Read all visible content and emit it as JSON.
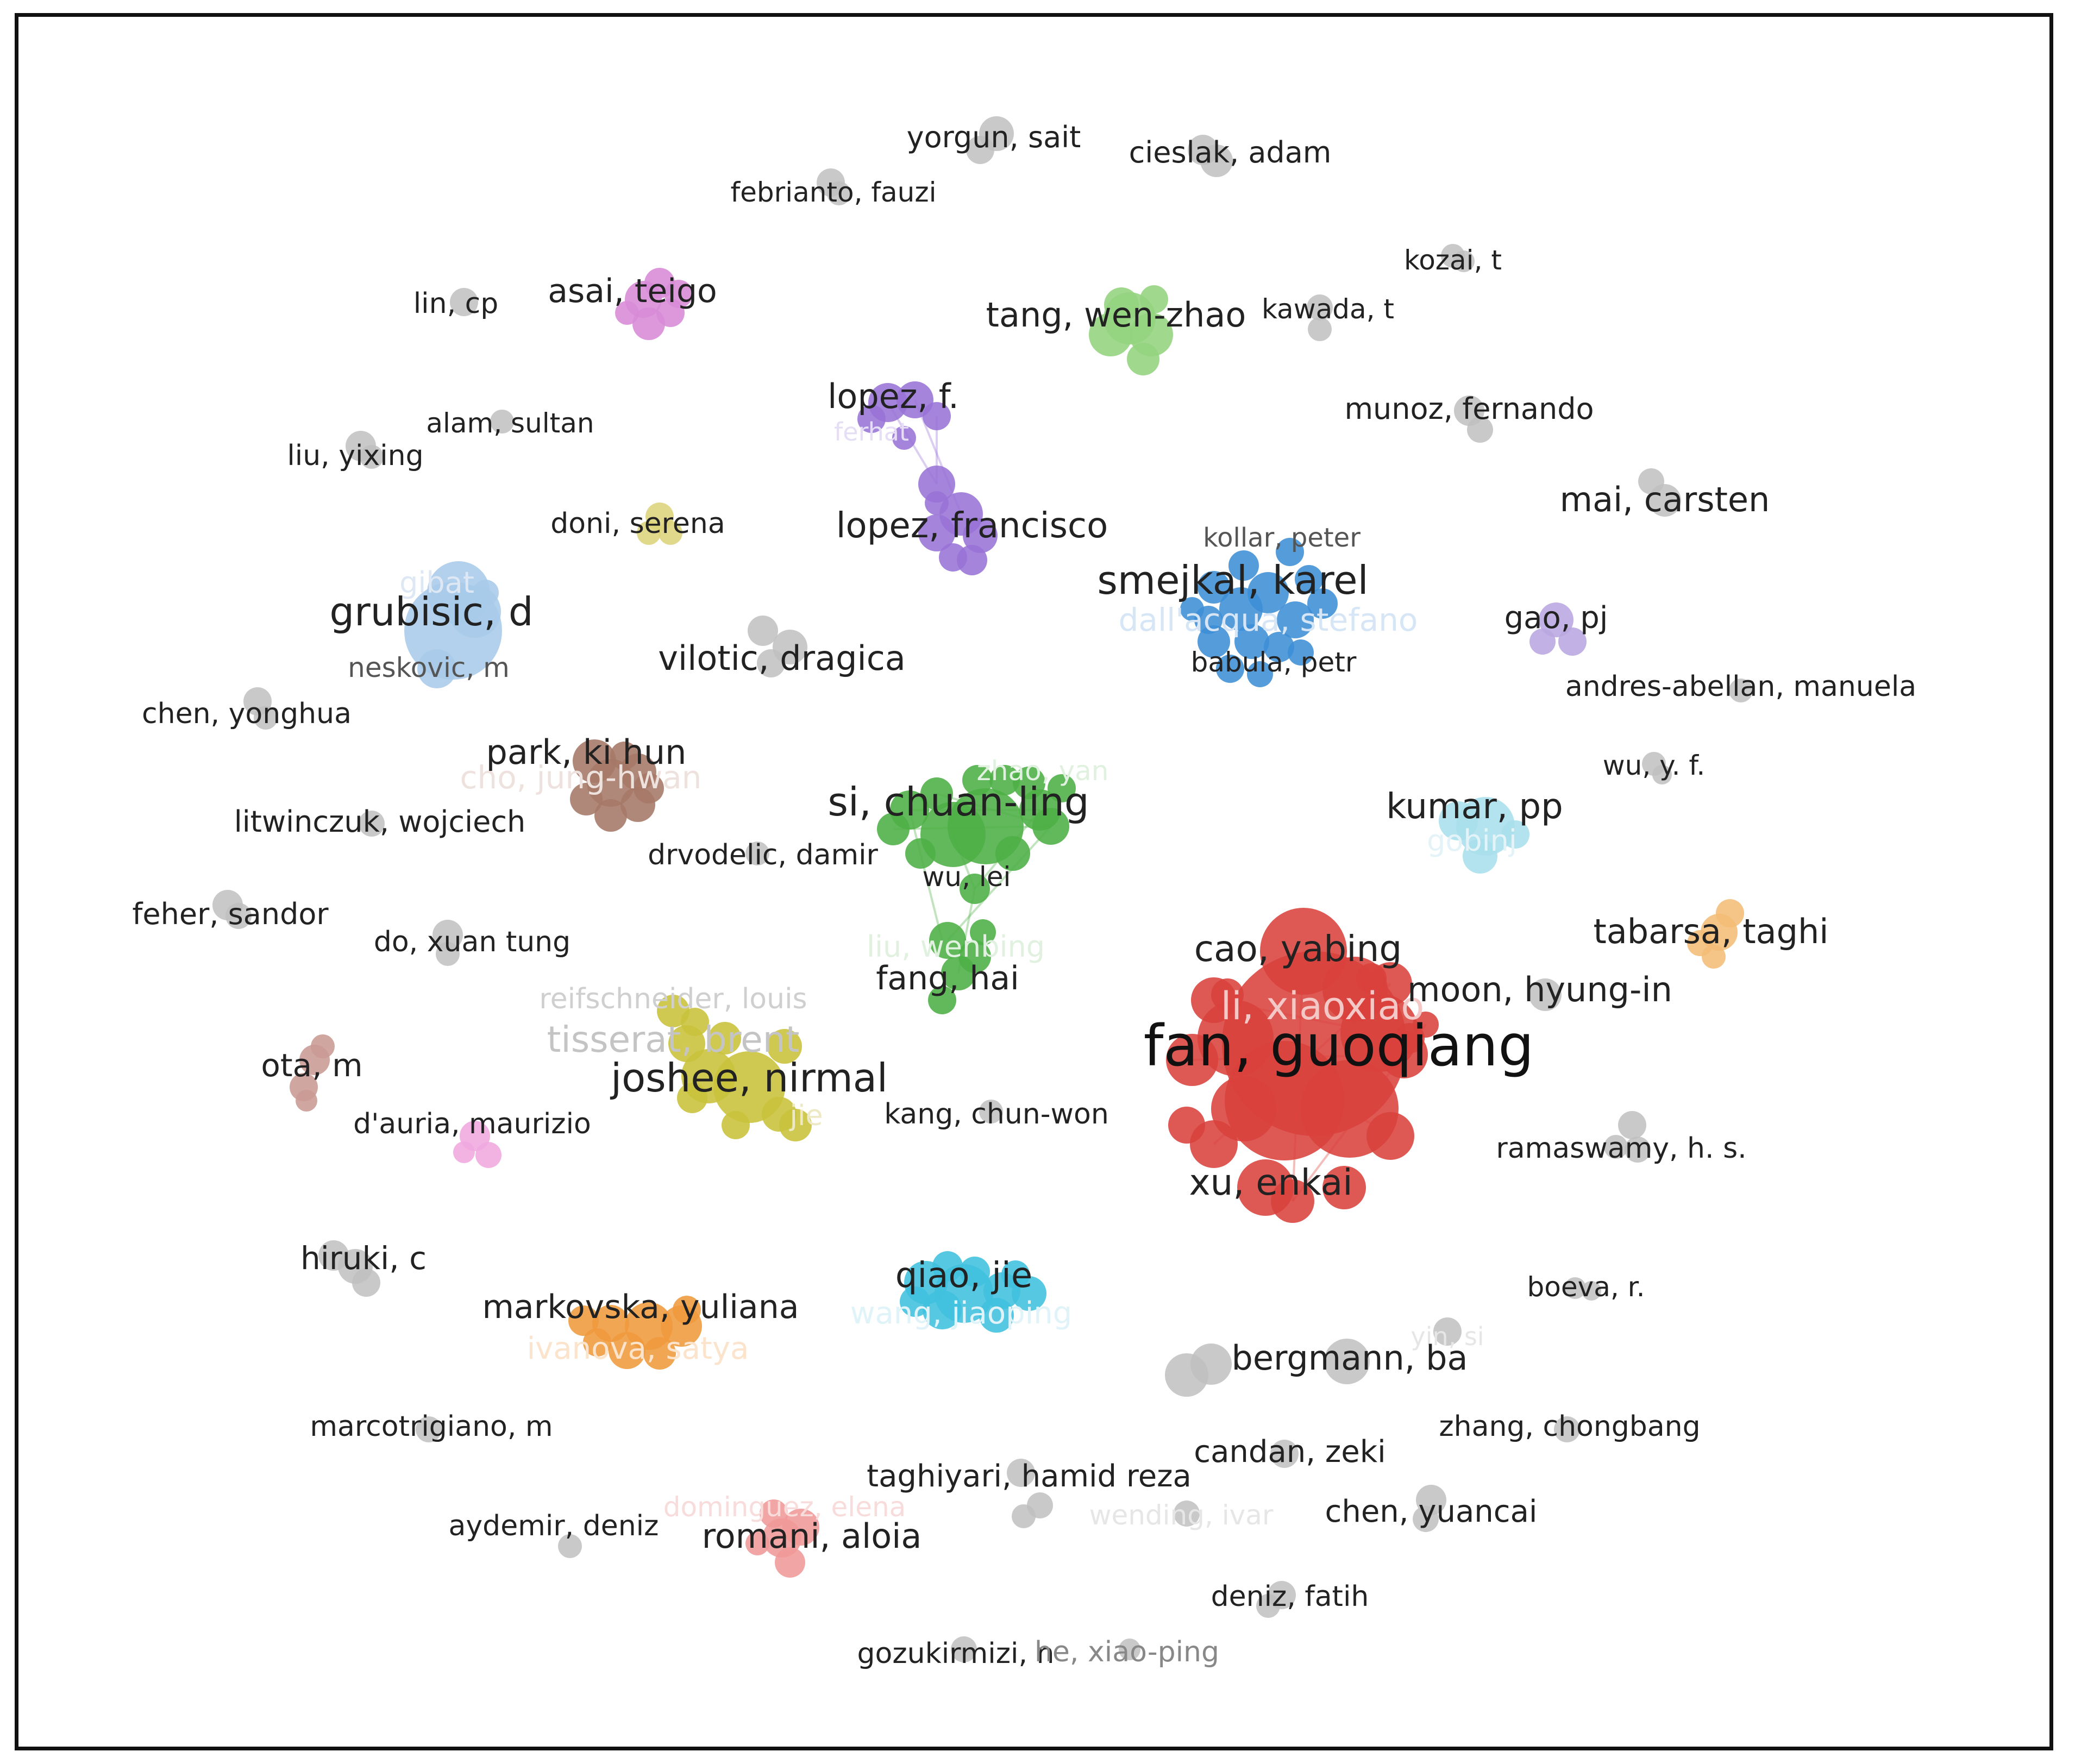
{
  "network": {
    "colors": {
      "gray": "#bfbfbf",
      "red": "#d9413c",
      "blue": "#3d8ed6",
      "light_blue": "#a9cbe9",
      "green": "#4caf44",
      "light_green": "#93d37e",
      "purple": "#9873d6",
      "lavender": "#b9a6e0",
      "magenta": "#d88ad6",
      "brown": "#a57767",
      "yellow": "#c8c13a",
      "pale_yellow": "#dcd37a",
      "orange": "#ef9a3c",
      "light_orange": "#f4bc76",
      "cyan": "#40c0de",
      "pale_cyan": "#a8dfec",
      "salmon": "#ef9a98",
      "rose": "#c99a94",
      "pink": "#f0a9df"
    },
    "labels": {
      "yorgun": "yorgun, sait",
      "cieslak": "cieslak, adam",
      "febrianto": "febrianto, fauzi",
      "kozai": "kozai, t",
      "lin_cp": "lin, cp",
      "asai": "asai, teigo",
      "tang": "tang, wen-zhao",
      "kawada": "kawada, t",
      "lopez_f": "lopez, f.",
      "munoz": "munoz, fernando",
      "alam": "alam, sultan",
      "liu_yixing": "liu, yixing",
      "mai": "mai, carsten",
      "doni": "doni, serena",
      "lopez_francisco": "lopez, francisco",
      "kollar": "kollar, peter",
      "grubisic": "grubisic, d",
      "smejkal": "smejkal, karel",
      "gao": "gao, pj",
      "neskovic": "neskovic, m",
      "vilotic": "vilotic, dragica",
      "babula": "babula, petr",
      "andres": "andres-abellan, manuela",
      "chen_yonghua": "chen, yonghua",
      "park": "park, ki hun",
      "wu_yf": "wu, y. f.",
      "si": "si, chuan-ling",
      "kumar": "kumar, pp",
      "litwinczuk": "litwinczuk, wojciech",
      "drvodelic": "drvodelic, damir",
      "wu_lei": "wu, lei",
      "feher": "feher, sandor",
      "tabarsa": "tabarsa, taghi",
      "do": "do, xuan tung",
      "cao": "cao, yabing",
      "fang": "fang, hai",
      "moon": "moon, hyung-in",
      "fan": "fan, guoqiang",
      "ota": "ota, m",
      "joshee": "joshee, nirmal",
      "tisserat": "tisserat, brent",
      "reifschneider": "reifschneider, louis",
      "kang": "kang, chun-won",
      "dauria": "d'auria, maurizio",
      "ramaswamy": "ramaswamy, h. s.",
      "xu": "xu, enkai",
      "hiruki": "hiruki, c",
      "qiao": "qiao, jie",
      "markovska": "markovska, yuliana",
      "boeva": "boeva, r.",
      "bergmann": "bergmann, ba",
      "marcotrigiano": "marcotrigiano, m",
      "zhang": "zhang, chongbang",
      "taghiyari": "taghiyari, hamid reza",
      "candan": "candan, zeki",
      "aydemir": "aydemir, deniz",
      "romani": "romani, aloia",
      "chen_yuancai": "chen, yuancai",
      "deniz": "deniz, fatih",
      "gozukirmizi": "gozukirmizi, n",
      "he": "he, xiao-ping"
    }
  }
}
